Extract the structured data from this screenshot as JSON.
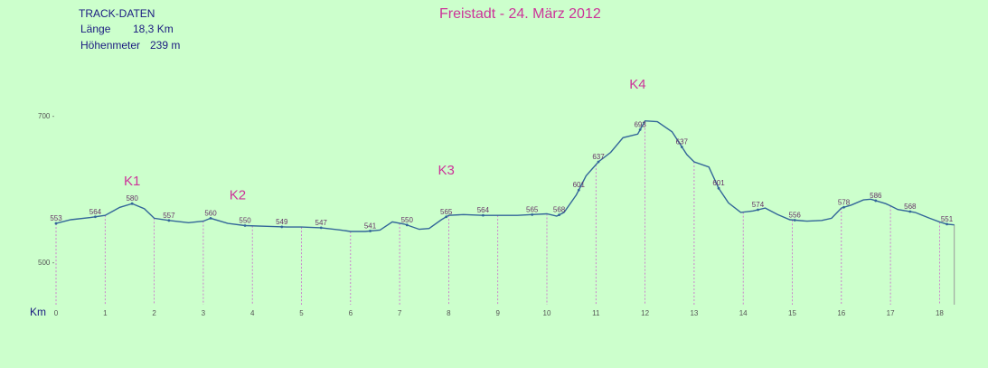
{
  "chart_data": {
    "type": "line",
    "title": "Freistadt - 24. März 2012",
    "track_info": {
      "header": "TRACK-DATEN",
      "length_label": "Länge",
      "length_value": "18,3 Km",
      "elevation_label": "Höhenmeter",
      "elevation_value": "239 m"
    },
    "xlabel": "Km",
    "ylabel": "",
    "xlim": [
      0,
      18.3
    ],
    "ylim": [
      450,
      710
    ],
    "x_ticks": [
      0,
      1,
      2,
      3,
      4,
      5,
      6,
      7,
      8,
      9,
      10,
      11,
      12,
      13,
      14,
      15,
      16,
      17,
      18
    ],
    "y_ticks": [
      500,
      700
    ],
    "grid": false,
    "series": [
      {
        "values": [
          [
            0,
            553
          ],
          [
            0.3,
            558
          ],
          [
            0.7,
            561
          ],
          [
            1.0,
            564
          ],
          [
            1.3,
            575
          ],
          [
            1.55,
            580
          ],
          [
            1.8,
            573
          ],
          [
            2.0,
            560
          ],
          [
            2.3,
            557
          ],
          [
            2.7,
            554
          ],
          [
            3.0,
            556
          ],
          [
            3.15,
            560
          ],
          [
            3.5,
            553
          ],
          [
            3.85,
            550
          ],
          [
            4.3,
            549
          ],
          [
            4.7,
            548
          ],
          [
            5.0,
            548
          ],
          [
            5.4,
            547
          ],
          [
            5.8,
            544
          ],
          [
            6.0,
            542
          ],
          [
            6.3,
            542
          ],
          [
            6.6,
            544
          ],
          [
            6.85,
            555
          ],
          [
            7.1,
            552
          ],
          [
            7.4,
            545
          ],
          [
            7.6,
            546
          ],
          [
            7.85,
            558
          ],
          [
            8.0,
            564
          ],
          [
            8.3,
            565
          ],
          [
            8.7,
            564
          ],
          [
            9.0,
            564
          ],
          [
            9.4,
            564
          ],
          [
            9.7,
            565
          ],
          [
            10.0,
            566
          ],
          [
            10.2,
            563
          ],
          [
            10.35,
            568
          ],
          [
            10.6,
            592
          ],
          [
            10.8,
            618
          ],
          [
            11.05,
            637
          ],
          [
            11.3,
            650
          ],
          [
            11.55,
            670
          ],
          [
            11.85,
            675
          ],
          [
            12.0,
            693
          ],
          [
            12.25,
            692
          ],
          [
            12.55,
            678
          ],
          [
            12.85,
            647
          ],
          [
            13.0,
            637
          ],
          [
            13.3,
            630
          ],
          [
            13.5,
            601
          ],
          [
            13.7,
            581
          ],
          [
            13.95,
            568
          ],
          [
            14.2,
            570
          ],
          [
            14.45,
            574
          ],
          [
            14.7,
            565
          ],
          [
            14.95,
            558
          ],
          [
            15.3,
            556
          ],
          [
            15.6,
            557
          ],
          [
            15.8,
            560
          ],
          [
            16.0,
            574
          ],
          [
            16.2,
            578
          ],
          [
            16.45,
            585
          ],
          [
            16.6,
            586
          ],
          [
            16.9,
            580
          ],
          [
            17.0,
            577
          ],
          [
            17.15,
            572
          ],
          [
            17.5,
            568
          ],
          [
            17.8,
            560
          ],
          [
            18.0,
            555
          ],
          [
            18.15,
            552
          ],
          [
            18.3,
            551
          ]
        ]
      }
    ],
    "point_labels": [
      {
        "x": 0,
        "y": 553,
        "text": "553"
      },
      {
        "x": 0.8,
        "y": 564,
        "text": "564"
      },
      {
        "x": 1.55,
        "y": 580,
        "text": "580"
      },
      {
        "x": 2.3,
        "y": 557,
        "text": "557"
      },
      {
        "x": 3.15,
        "y": 560,
        "text": "560"
      },
      {
        "x": 3.85,
        "y": 550,
        "text": "550"
      },
      {
        "x": 4.6,
        "y": 549,
        "text": "549"
      },
      {
        "x": 5.4,
        "y": 547,
        "text": "547"
      },
      {
        "x": 6.4,
        "y": 541,
        "text": "541"
      },
      {
        "x": 7.15,
        "y": 550,
        "text": "550"
      },
      {
        "x": 7.95,
        "y": 565,
        "text": "565"
      },
      {
        "x": 8.7,
        "y": 564,
        "text": "564"
      },
      {
        "x": 9.7,
        "y": 565,
        "text": "565"
      },
      {
        "x": 10.25,
        "y": 568,
        "text": "568"
      },
      {
        "x": 10.65,
        "y": 601,
        "text": "601"
      },
      {
        "x": 11.05,
        "y": 637,
        "text": "637"
      },
      {
        "x": 11.9,
        "y": 693,
        "text": "693"
      },
      {
        "x": 12.75,
        "y": 637,
        "text": "637"
      },
      {
        "x": 13.5,
        "y": 601,
        "text": "601"
      },
      {
        "x": 14.3,
        "y": 574,
        "text": "574"
      },
      {
        "x": 15.05,
        "y": 556,
        "text": "556"
      },
      {
        "x": 16.05,
        "y": 578,
        "text": "578"
      },
      {
        "x": 16.7,
        "y": 586,
        "text": "586"
      },
      {
        "x": 17.4,
        "y": 568,
        "text": "568"
      },
      {
        "x": 18.15,
        "y": 551,
        "text": "551"
      }
    ],
    "drop_lines_x": [
      0,
      1,
      2,
      3,
      4,
      5,
      6,
      7,
      8,
      9,
      10,
      11,
      12,
      13,
      14,
      15,
      16,
      17,
      18
    ],
    "annotations": [
      {
        "text": "K1",
        "x": 1.55,
        "y": 605
      },
      {
        "text": "K2",
        "x": 3.7,
        "y": 586
      },
      {
        "text": "K3",
        "x": 7.95,
        "y": 620
      },
      {
        "text": "K4",
        "x": 11.85,
        "y": 737
      }
    ],
    "colors": {
      "background": "#ccffcc",
      "line": "#336699",
      "drop_line": "#cc66cc",
      "annotation": "#cc3399",
      "title": "#cc3399",
      "info_text": "#1a1a80",
      "tick_text": "#555555",
      "point_label": "#663366"
    }
  }
}
